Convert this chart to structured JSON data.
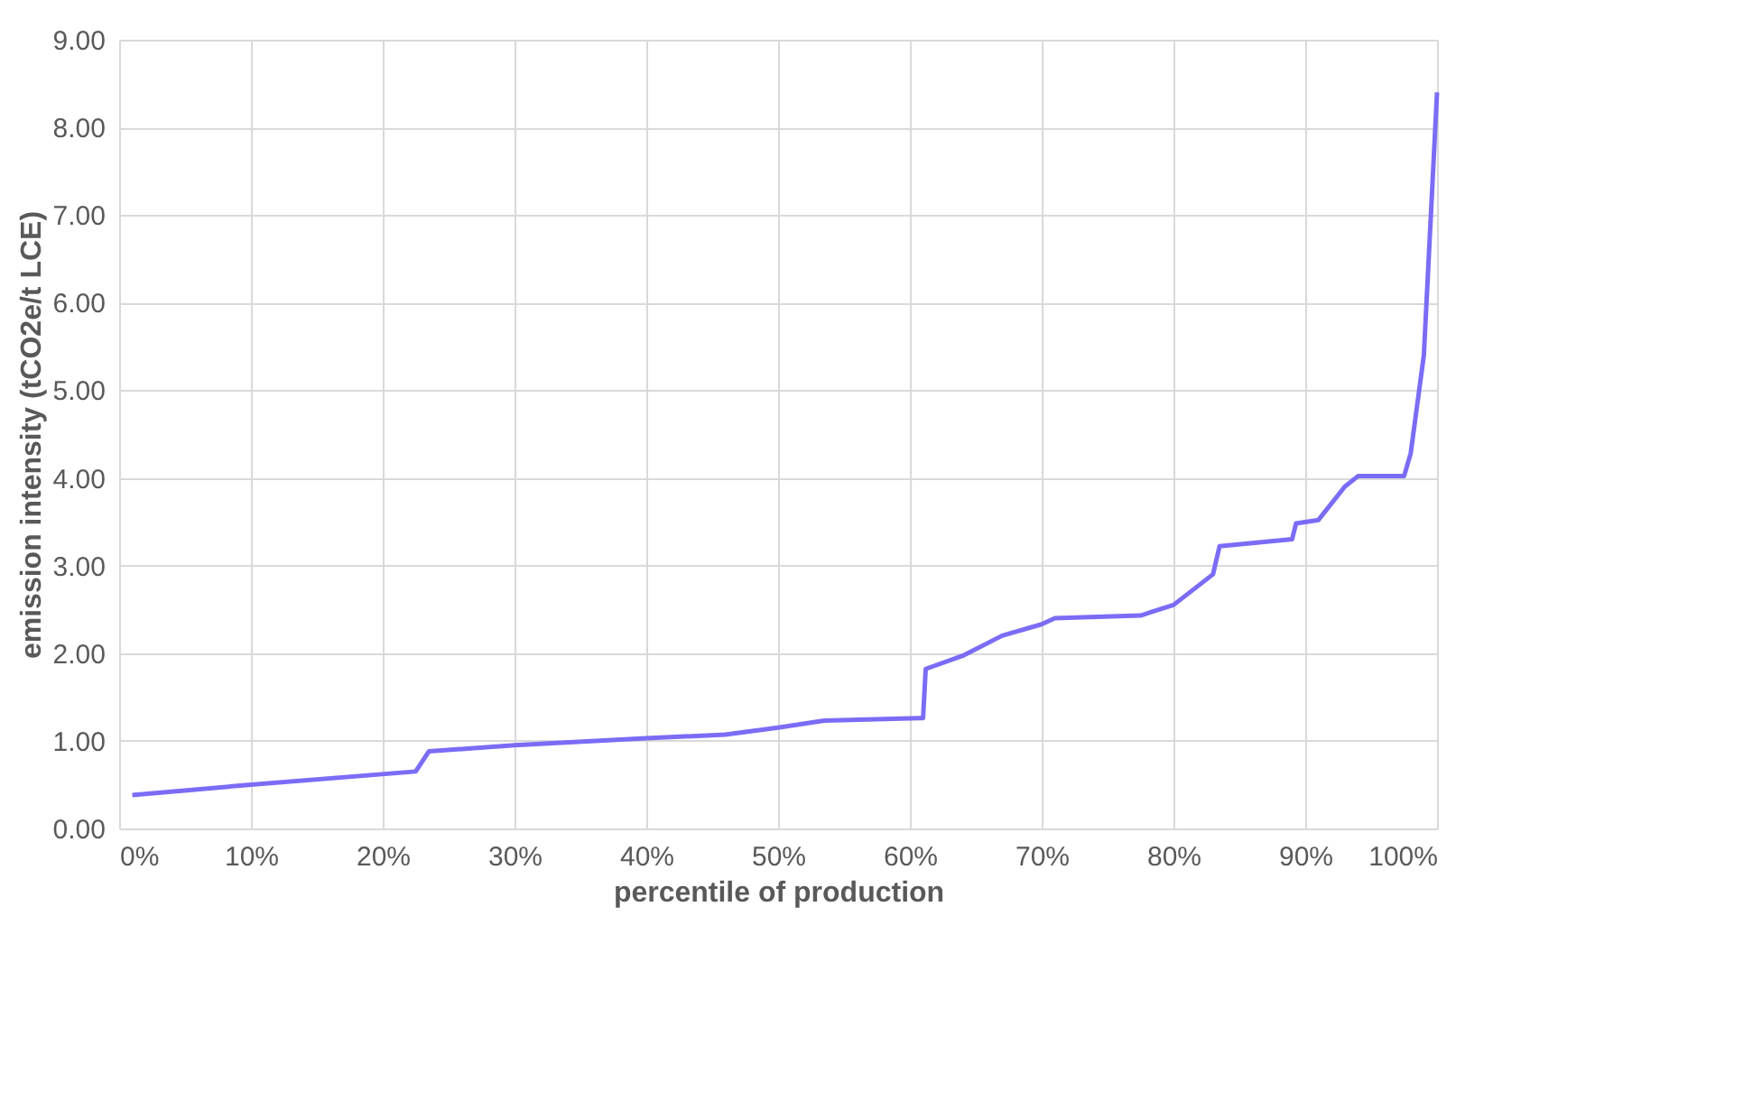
{
  "chart_data": {
    "type": "line",
    "xlabel": "percentile of production",
    "ylabel": "emission intensity (tCO2e/t LCE)",
    "x": [
      1,
      10,
      22.5,
      23.5,
      30,
      40,
      46,
      50,
      53.5,
      61,
      61.2,
      64,
      67,
      70,
      71,
      77.5,
      80,
      83,
      83.5,
      89,
      89.3,
      91,
      93,
      94,
      97.5,
      98,
      99,
      100
    ],
    "series": [
      {
        "color": "#7b6cf6",
        "values": [
          0.38,
          0.5,
          0.65,
          0.88,
          0.95,
          1.03,
          1.07,
          1.15,
          1.23,
          1.26,
          1.82,
          1.97,
          2.2,
          2.33,
          2.4,
          2.43,
          2.55,
          2.9,
          3.22,
          3.3,
          3.48,
          3.52,
          3.9,
          4.02,
          4.02,
          4.28,
          5.4,
          8.4
        ]
      }
    ],
    "xlim": [
      0,
      100
    ],
    "xticks": [
      {
        "value": 0,
        "label": "0%"
      },
      {
        "value": 10,
        "label": "10%"
      },
      {
        "value": 20,
        "label": "20%"
      },
      {
        "value": 30,
        "label": "30%"
      },
      {
        "value": 40,
        "label": "40%"
      },
      {
        "value": 50,
        "label": "50%"
      },
      {
        "value": 60,
        "label": "60%"
      },
      {
        "value": 70,
        "label": "70%"
      },
      {
        "value": 80,
        "label": "80%"
      },
      {
        "value": 90,
        "label": "90%"
      },
      {
        "value": 100,
        "label": "100%"
      }
    ],
    "ylim": [
      0,
      9
    ],
    "yticks": [
      {
        "value": 0,
        "label": "0.00"
      },
      {
        "value": 1,
        "label": "1.00"
      },
      {
        "value": 2,
        "label": "2.00"
      },
      {
        "value": 3,
        "label": "3.00"
      },
      {
        "value": 4,
        "label": "4.00"
      },
      {
        "value": 5,
        "label": "5.00"
      },
      {
        "value": 6,
        "label": "6.00"
      },
      {
        "value": 7,
        "label": "7.00"
      },
      {
        "value": 8,
        "label": "8.00"
      },
      {
        "value": 9,
        "label": "9.00"
      }
    ],
    "grid": true,
    "marker": "none",
    "line_style": "solid"
  }
}
